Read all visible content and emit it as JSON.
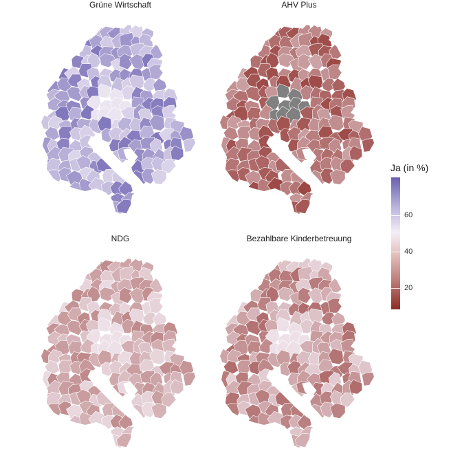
{
  "panels": [
    {
      "title": "Grüne Wirtschaft",
      "scheme": "green"
    },
    {
      "title": "AHV Plus",
      "scheme": "ahv"
    },
    {
      "title": "NDG",
      "scheme": "ndg"
    },
    {
      "title": "Bezahlbare Kinderbetreuung",
      "scheme": "kinder"
    }
  ],
  "legend": {
    "title": "Ja (in %)",
    "ticks": [
      {
        "value": "60"
      },
      {
        "value": "40"
      },
      {
        "value": "20"
      }
    ],
    "colors": {
      "high": "#6a5fb0",
      "mid": "#f4eef6",
      "low": "#8d2b26",
      "missing": "#808080"
    }
  }
}
